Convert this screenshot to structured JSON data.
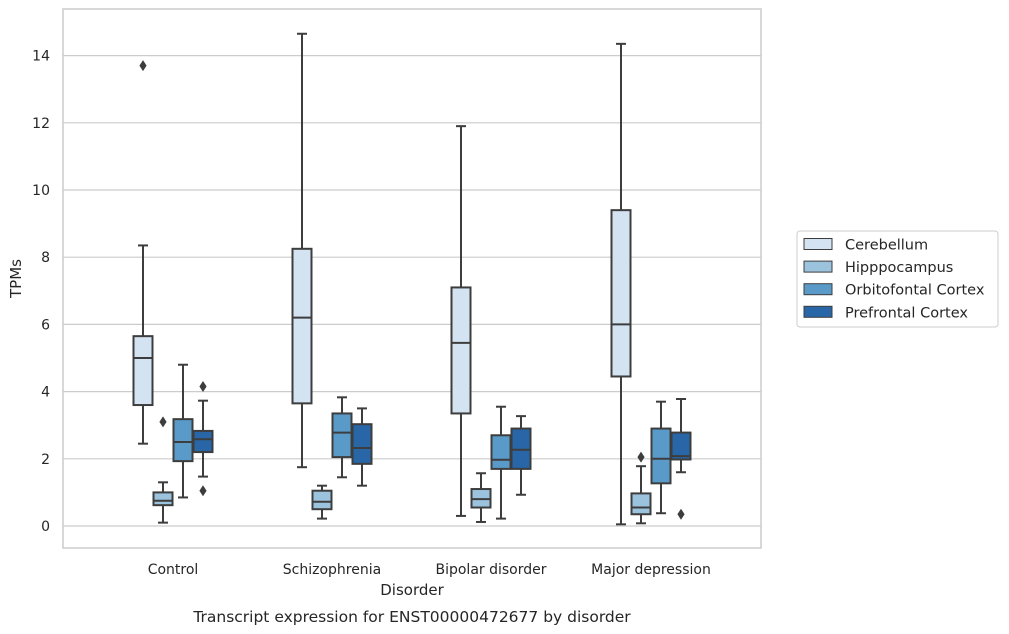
{
  "chart_data": {
    "type": "box",
    "xlabel": "Disorder",
    "ylabel": "TPMs",
    "caption": "Transcript expression for ENST00000472677 by disorder",
    "ylim": [
      -0.65,
      15.35
    ],
    "yticks": [
      0,
      2,
      4,
      6,
      8,
      10,
      12,
      14
    ],
    "grid": "horizontal",
    "legend_position": "right",
    "categories": [
      "Control",
      "Schizophrenia",
      "Bipolar disorder",
      "Major depression"
    ],
    "series": [
      {
        "name": "Cerebellum",
        "color": "#d4e3f2",
        "boxes": [
          {
            "whisker_low": 2.45,
            "q1": 3.6,
            "median": 5.0,
            "q3": 5.65,
            "whisker_high": 8.35,
            "outliers": [
              13.7
            ]
          },
          {
            "whisker_low": 1.75,
            "q1": 3.65,
            "median": 6.2,
            "q3": 8.25,
            "whisker_high": 14.65,
            "outliers": []
          },
          {
            "whisker_low": 0.3,
            "q1": 3.35,
            "median": 5.45,
            "q3": 7.1,
            "whisker_high": 11.9,
            "outliers": []
          },
          {
            "whisker_low": 0.05,
            "q1": 4.45,
            "median": 6.0,
            "q3": 9.4,
            "whisker_high": 14.35,
            "outliers": []
          }
        ]
      },
      {
        "name": "Hipppocampus",
        "color": "#9cc3de",
        "boxes": [
          {
            "whisker_low": 0.1,
            "q1": 0.62,
            "median": 0.75,
            "q3": 1.0,
            "whisker_high": 1.3,
            "outliers": [
              3.1
            ]
          },
          {
            "whisker_low": 0.22,
            "q1": 0.5,
            "median": 0.72,
            "q3": 1.05,
            "whisker_high": 1.2,
            "outliers": []
          },
          {
            "whisker_low": 0.12,
            "q1": 0.55,
            "median": 0.8,
            "q3": 1.1,
            "whisker_high": 1.57,
            "outliers": []
          },
          {
            "whisker_low": 0.08,
            "q1": 0.35,
            "median": 0.55,
            "q3": 0.97,
            "whisker_high": 1.78,
            "outliers": [
              2.05
            ]
          }
        ]
      },
      {
        "name": "Orbitofontal Cortex",
        "color": "#5a9ac8",
        "boxes": [
          {
            "whisker_low": 0.85,
            "q1": 1.93,
            "median": 2.5,
            "q3": 3.18,
            "whisker_high": 4.8,
            "outliers": []
          },
          {
            "whisker_low": 1.45,
            "q1": 2.05,
            "median": 2.78,
            "q3": 3.35,
            "whisker_high": 3.83,
            "outliers": []
          },
          {
            "whisker_low": 0.22,
            "q1": 1.7,
            "median": 1.97,
            "q3": 2.7,
            "whisker_high": 3.55,
            "outliers": []
          },
          {
            "whisker_low": 0.38,
            "q1": 1.27,
            "median": 2.0,
            "q3": 2.9,
            "whisker_high": 3.7,
            "outliers": []
          }
        ]
      },
      {
        "name": "Prefrontal Cortex",
        "color": "#2866a8",
        "boxes": [
          {
            "whisker_low": 1.47,
            "q1": 2.2,
            "median": 2.58,
            "q3": 2.83,
            "whisker_high": 3.73,
            "outliers": [
              1.05,
              4.15
            ]
          },
          {
            "whisker_low": 1.2,
            "q1": 1.85,
            "median": 2.32,
            "q3": 3.03,
            "whisker_high": 3.5,
            "outliers": []
          },
          {
            "whisker_low": 0.93,
            "q1": 1.7,
            "median": 2.27,
            "q3": 2.9,
            "whisker_high": 3.27,
            "outliers": []
          },
          {
            "whisker_low": 1.6,
            "q1": 1.98,
            "median": 2.08,
            "q3": 2.78,
            "whisker_high": 3.78,
            "outliers": [
              0.35
            ]
          }
        ]
      }
    ]
  }
}
